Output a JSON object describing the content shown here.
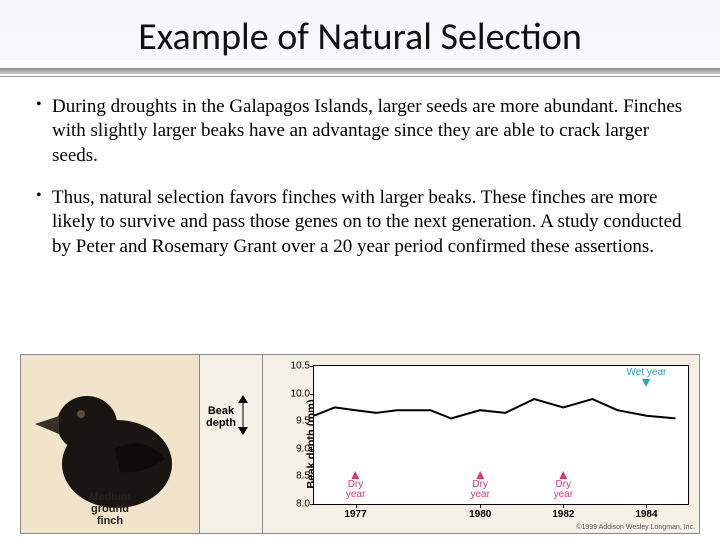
{
  "title": "Example of Natural Selection",
  "bullets": [
    "During droughts in the Galapagos Islands, larger seeds are more abundant.  Finches with slightly larger beaks have an advantage since they are able to crack larger seeds.",
    "Thus, natural selection favors finches with larger beaks. These finches are more likely to survive and pass those genes on to the next generation. A study conducted by Peter and Rosemary Grant over a 20 year period confirmed these assertions."
  ],
  "finch": {
    "label_line1": "Medium",
    "label_line2": "ground",
    "label_line3": "finch",
    "bg_color": "#f1e4ca",
    "bird_color": "#1a1512",
    "highlight": "#3a2f26"
  },
  "beak_depth": {
    "label": "Beak\ndepth"
  },
  "chart": {
    "type": "line",
    "ylabel": "Beak depth (mm)",
    "ylim": [
      8.0,
      10.5
    ],
    "yticks": [
      8.0,
      8.5,
      9.0,
      9.5,
      10.0,
      10.5
    ],
    "xlim": [
      1976,
      1985
    ],
    "xticks": [
      1977,
      1980,
      1982,
      1984
    ],
    "line_color": "#000000",
    "line_width": 2,
    "background_color": "#ffffff",
    "plot_bg": "#f4f0e6",
    "series": [
      {
        "x": 1976.0,
        "y": 9.6
      },
      {
        "x": 1976.5,
        "y": 9.75
      },
      {
        "x": 1977.0,
        "y": 9.7
      },
      {
        "x": 1977.5,
        "y": 9.65
      },
      {
        "x": 1978.0,
        "y": 9.7
      },
      {
        "x": 1978.8,
        "y": 9.7
      },
      {
        "x": 1979.3,
        "y": 9.55
      },
      {
        "x": 1980.0,
        "y": 9.7
      },
      {
        "x": 1980.6,
        "y": 9.65
      },
      {
        "x": 1981.3,
        "y": 9.9
      },
      {
        "x": 1982.0,
        "y": 9.75
      },
      {
        "x": 1982.7,
        "y": 9.9
      },
      {
        "x": 1983.3,
        "y": 9.7
      },
      {
        "x": 1984.0,
        "y": 9.6
      },
      {
        "x": 1984.7,
        "y": 9.55
      }
    ],
    "annotations": [
      {
        "x": 1977,
        "label": "Dry\nyear",
        "color": "#d93a7a",
        "position": "below"
      },
      {
        "x": 1980,
        "label": "Dry\nyear",
        "color": "#d93a7a",
        "position": "below"
      },
      {
        "x": 1982,
        "label": "Dry\nyear",
        "color": "#d93a7a",
        "position": "below"
      },
      {
        "x": 1984,
        "label": "Wet year",
        "color": "#1fa7c7",
        "position": "above"
      }
    ],
    "copyright": "©1999 Addison Wesley Longman, Inc."
  }
}
